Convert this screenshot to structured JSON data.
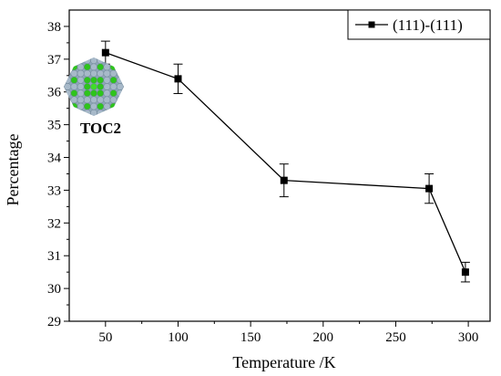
{
  "chart_data": {
    "type": "line",
    "title": "",
    "xlabel": "Temperature /K",
    "ylabel": "Percentage",
    "xlim": [
      25,
      315
    ],
    "ylim": [
      29,
      38.5
    ],
    "x_ticks": [
      50,
      100,
      150,
      200,
      250,
      300
    ],
    "y_ticks": [
      29,
      30,
      31,
      32,
      33,
      34,
      35,
      36,
      37,
      38
    ],
    "grid": false,
    "legend_position": "top-right",
    "series": [
      {
        "name": "(111)-(111)",
        "color": "#000000",
        "marker": "square",
        "x": [
          50,
          100,
          173,
          273,
          298
        ],
        "y": [
          37.2,
          36.4,
          33.3,
          33.05,
          30.5
        ],
        "error": [
          0.35,
          0.45,
          0.5,
          0.45,
          0.3
        ]
      }
    ],
    "annotations": [
      {
        "text": "TOC2",
        "kind": "inset-image",
        "icon": "nanoparticle-cluster-icon"
      }
    ]
  }
}
